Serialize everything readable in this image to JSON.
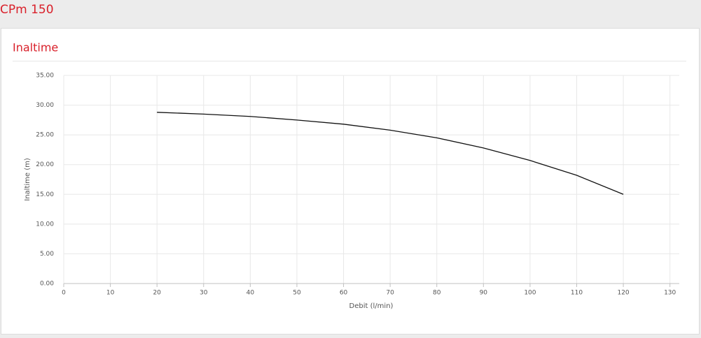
{
  "header": {
    "title": "CPm 150"
  },
  "chart_data": {
    "type": "line",
    "title": "Inaltime",
    "x_label": "Debit (l/min)",
    "y_label": "Inaltime (m)",
    "x": [
      20,
      30,
      40,
      50,
      60,
      70,
      80,
      90,
      100,
      110,
      120
    ],
    "series": [
      {
        "color": "#111111",
        "values": [
          28.8,
          28.5,
          28.1,
          27.5,
          26.8,
          25.8,
          24.5,
          22.8,
          20.7,
          18.2,
          15.0
        ]
      }
    ],
    "xlim": [
      0,
      132
    ],
    "xticks": [
      0,
      10,
      20,
      30,
      40,
      50,
      60,
      70,
      80,
      90,
      100,
      110,
      120,
      130
    ],
    "ylim": [
      0,
      35
    ],
    "yticks": [
      {
        "value": 0,
        "label": "0.00"
      },
      {
        "value": 5,
        "label": "5.00"
      },
      {
        "value": 10,
        "label": "10.00"
      },
      {
        "value": 15,
        "label": "15.00"
      },
      {
        "value": 20,
        "label": "20.00"
      },
      {
        "value": 25,
        "label": "25.00"
      },
      {
        "value": 30,
        "label": "30.00"
      },
      {
        "value": 35,
        "label": "35.00"
      }
    ],
    "grid": true
  }
}
